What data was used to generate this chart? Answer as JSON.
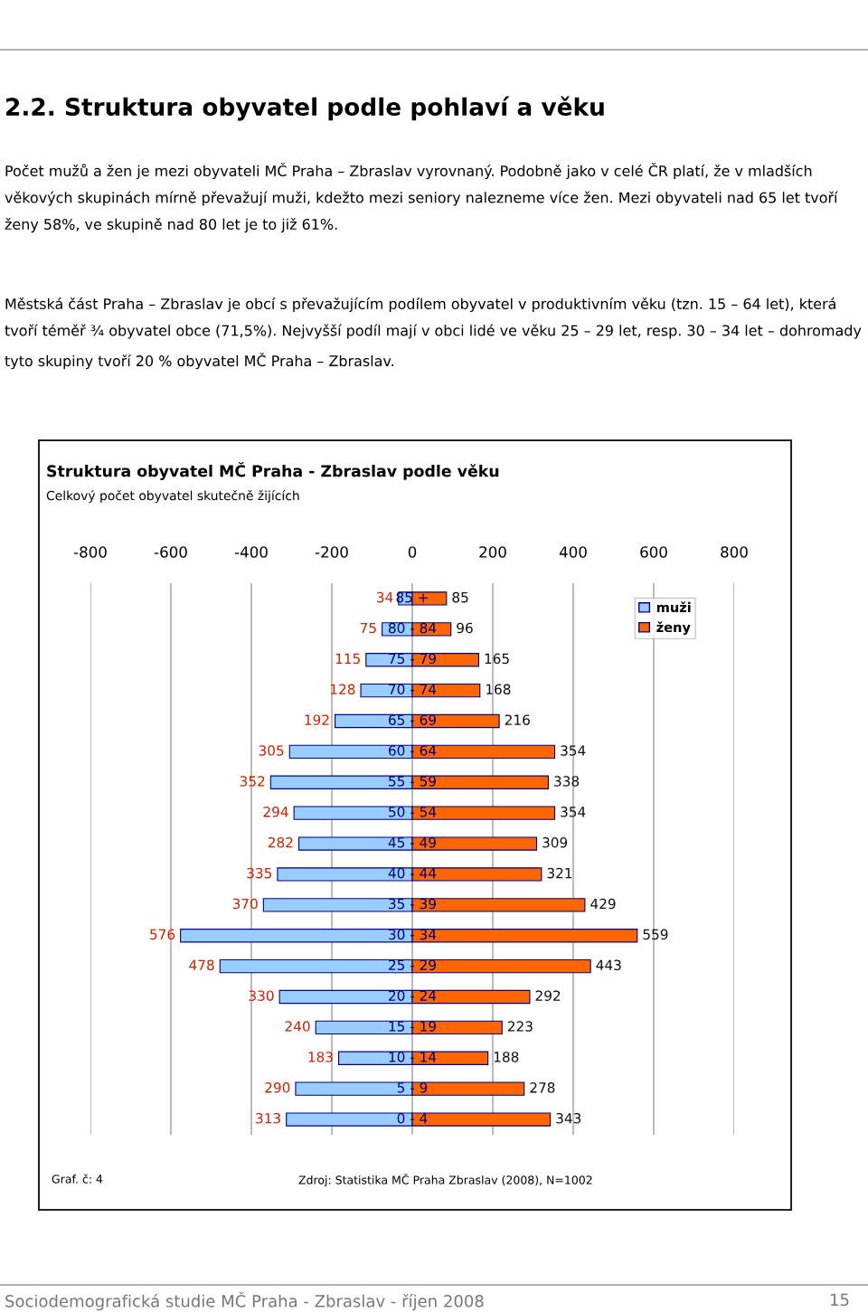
{
  "chart_data": {
    "type": "bar",
    "orientation": "horizontal",
    "title": "Struktura obyvatel MČ Praha - Zbraslav podle věku",
    "subtitle": "Celkový počet obyvatel skutečně žijících",
    "categories": [
      "85 +",
      "80 - 84",
      "75 - 79",
      "70 - 74",
      "65 - 69",
      "60 - 64",
      "55 - 59",
      "50 - 54",
      "45 - 49",
      "40 - 44",
      "35 - 39",
      "30 - 34",
      "25 - 29",
      "20 - 24",
      "15 - 19",
      "10 - 14",
      "5 - 9",
      "0 - 4"
    ],
    "series": [
      {
        "name": "muži",
        "color": "#99ccff",
        "values": [
          34,
          75,
          115,
          128,
          192,
          305,
          352,
          294,
          282,
          335,
          370,
          576,
          478,
          330,
          240,
          183,
          290,
          313
        ],
        "base": [
          -34,
          -75,
          -115,
          -128,
          -192,
          -305,
          -352,
          -294,
          -282,
          -335,
          -370,
          -576,
          -478,
          -330,
          -240,
          -183,
          -290,
          -313
        ],
        "value_labels": [
          "34",
          "75",
          "115",
          "128",
          "192",
          "305",
          "352",
          "294",
          "282",
          "335",
          "370",
          "576",
          "478",
          "330",
          "240",
          "183",
          "290",
          "313"
        ]
      },
      {
        "name": "ženy",
        "color": "#ff6600",
        "values": [
          85,
          96,
          165,
          168,
          216,
          354,
          338,
          354,
          309,
          321,
          429,
          559,
          443,
          292,
          223,
          188,
          278,
          343
        ],
        "value_labels": [
          "85",
          "96",
          "165",
          "168",
          "216",
          "354",
          "338",
          "354",
          "309",
          "321",
          "429",
          "559",
          "443",
          "292",
          "223",
          "188",
          "278",
          "343"
        ]
      }
    ],
    "xlim": [
      -800,
      800
    ],
    "xticks": [
      -800,
      -600,
      -400,
      -200,
      0,
      200,
      400,
      600,
      800
    ],
    "grid": "x",
    "legend": "top right",
    "annotations": [
      "2.2. Struktura obyvatel podle pohlaví a věku",
      "Počet mužů a žen je mezi obyvateli MČ Praha – Zbraslav vyrovnaný. Podobně jako v celé ČR platí, že v mladších věkových skupinách mírně převažují muži, kdežto mezi seniory nalezneme více žen. Mezi obyvateli nad 65 let tvoří ženy 58%, ve skupině nad 80 let je to již 61%.",
      "Městská část Praha – Zbraslav je obcí s převažujícím podílem obyvatel v produktivním věku (tzn. 15 – 64 let), která tvoří téměř ¾ obyvatel obce (71,5%). Nejvyšší podíl mají v obci lidé ve věku 25 – 29 let, resp. 30 – 34 let – dohromady tyto skupiny tvoří 20 % obyvatel MČ Praha – Zbraslav.",
      "Graf. č: 4",
      "Zdroj: Statistika MČ Praha Zbraslav (2008), N=1002",
      "Sociodemografická studie MČ Praha - Zbraslav - říjen 2008",
      "15"
    ]
  }
}
